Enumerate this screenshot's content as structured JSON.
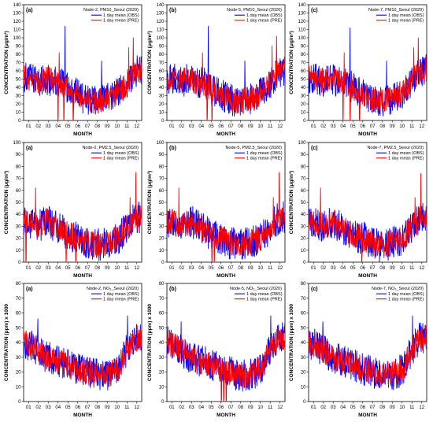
{
  "figure": {
    "obs_color": "#0000ff",
    "pre_color": "#ff0000",
    "xlabel": "MONTH",
    "months": [
      "01",
      "02",
      "03",
      "04",
      "05",
      "06",
      "07",
      "08",
      "09",
      "10",
      "11",
      "12"
    ]
  },
  "chart_data": [
    {
      "type": "line",
      "panel": "(a)",
      "title": "Node-2, PM10_Seoul (2020)",
      "ylabel": "CONCENTRATION (μg/m³)",
      "ylim": [
        0,
        140
      ],
      "ystep": 10,
      "xlabel": "MONTH",
      "legend": "top-right",
      "series": [
        {
          "name": "1 day mean (OBS)",
          "color": "#0000ff"
        },
        {
          "name": "1 day mean (PRE)",
          "color": "#ff0000"
        }
      ],
      "base": [
        52,
        50,
        48,
        50,
        46,
        44,
        36,
        30,
        26,
        22,
        25,
        28,
        34,
        44,
        58,
        62
      ],
      "obs_spikes": [
        [
          0.35,
          114
        ],
        [
          0.66,
          72
        ]
      ],
      "pre_spikes": [
        [
          0.3,
          82
        ],
        [
          0.93,
          100
        ],
        [
          0.89,
          88
        ]
      ],
      "pre_drops": [
        0.29,
        0.34,
        0.42
      ]
    },
    {
      "type": "line",
      "panel": "(b)",
      "title": "Node-5, PM10_Seoul (2020)",
      "ylabel": "CONCENTRATION (μg/m³)",
      "ylim": [
        0,
        140
      ],
      "ystep": 10,
      "xlabel": "MONTH",
      "legend": "top-right",
      "series": [
        {
          "name": "1 day mean (OBS)",
          "color": "#0000ff"
        },
        {
          "name": "1 day mean (PRE)",
          "color": "#ff0000"
        }
      ],
      "base": [
        52,
        50,
        48,
        50,
        46,
        44,
        36,
        30,
        26,
        22,
        25,
        28,
        34,
        44,
        58,
        62
      ],
      "obs_spikes": [
        [
          0.35,
          114
        ],
        [
          0.66,
          72
        ]
      ],
      "pre_spikes": [
        [
          0.3,
          82
        ],
        [
          0.93,
          102
        ],
        [
          0.89,
          90
        ]
      ],
      "pre_drops": [
        0.34,
        0.38
      ]
    },
    {
      "type": "line",
      "panel": "(c)",
      "title": "Node-7, PM10_Seoul (2020)",
      "ylabel": "CONCENTRATION (μg/m³)",
      "ylim": [
        0,
        140
      ],
      "ystep": 10,
      "xlabel": "MONTH",
      "legend": "top-right",
      "series": [
        {
          "name": "1 day mean (OBS)",
          "color": "#0000ff"
        },
        {
          "name": "1 day mean (PRE)",
          "color": "#ff0000"
        }
      ],
      "base": [
        52,
        50,
        48,
        50,
        46,
        44,
        36,
        30,
        26,
        22,
        25,
        28,
        34,
        44,
        58,
        62
      ],
      "obs_spikes": [
        [
          0.35,
          112
        ],
        [
          0.66,
          72
        ]
      ],
      "pre_spikes": [
        [
          0.3,
          82
        ],
        [
          0.93,
          100
        ],
        [
          0.89,
          88
        ]
      ],
      "pre_drops": [
        0.29,
        0.35,
        0.43
      ]
    },
    {
      "type": "line",
      "panel": "(a)",
      "title": "Node-2, PM2.5_Seoul (2020)",
      "ylabel": "CONCENTRATION (μg/m³)",
      "ylim": [
        0,
        100
      ],
      "ystep": 10,
      "xlabel": "MONTH",
      "legend": "top-right",
      "series": [
        {
          "name": "1 day mean (OBS)",
          "color": "#0000ff"
        },
        {
          "name": "1 day mean (PRE)",
          "color": "#ff0000"
        }
      ],
      "base": [
        34,
        32,
        30,
        34,
        30,
        26,
        22,
        20,
        16,
        14,
        15,
        17,
        20,
        28,
        36,
        38
      ],
      "obs_spikes": [],
      "pre_spikes": [
        [
          0.1,
          62
        ],
        [
          0.95,
          75
        ],
        [
          0.9,
          54
        ]
      ],
      "pre_drops": [
        0.02,
        0.36,
        0.44
      ]
    },
    {
      "type": "line",
      "panel": "(b)",
      "title": "Node-5, PM2.5_Seoul (2020)",
      "ylabel": "CONCENTRATION (μg/m³)",
      "ylim": [
        0,
        100
      ],
      "ystep": 10,
      "xlabel": "MONTH",
      "legend": "top-right",
      "series": [
        {
          "name": "1 day mean (OBS)",
          "color": "#0000ff"
        },
        {
          "name": "1 day mean (PRE)",
          "color": "#ff0000"
        }
      ],
      "base": [
        34,
        32,
        30,
        34,
        30,
        26,
        22,
        20,
        16,
        14,
        15,
        17,
        20,
        28,
        36,
        38
      ],
      "obs_spikes": [],
      "pre_spikes": [
        [
          0.1,
          62
        ],
        [
          0.95,
          75
        ],
        [
          0.9,
          54
        ]
      ],
      "pre_drops": [
        0.38,
        0.4
      ]
    },
    {
      "type": "line",
      "panel": "(c)",
      "title": "Node-7, PM2.5_Seoul (2020)",
      "ylabel": "CONCENTRATION (μg/m³)",
      "ylim": [
        0,
        100
      ],
      "ystep": 10,
      "xlabel": "MONTH",
      "legend": "top-right",
      "series": [
        {
          "name": "1 day mean (OBS)",
          "color": "#0000ff"
        },
        {
          "name": "1 day mean (PRE)",
          "color": "#ff0000"
        }
      ],
      "base": [
        34,
        32,
        30,
        34,
        30,
        26,
        22,
        20,
        16,
        14,
        15,
        17,
        20,
        28,
        36,
        38
      ],
      "obs_spikes": [],
      "pre_spikes": [
        [
          0.1,
          62
        ],
        [
          0.95,
          74
        ],
        [
          0.9,
          54
        ]
      ],
      "pre_drops": [
        0.45
      ]
    },
    {
      "type": "line",
      "panel": "(a)",
      "title": "Node-2, NO₂_Seoul (2020)",
      "ylabel": "CONCENTRATION (ppm) x 1000",
      "ylim": [
        0,
        80
      ],
      "ystep": 10,
      "xlabel": "MONTH",
      "legend": "top-right",
      "series": [
        {
          "name": "1 day mean (OBS)",
          "color": "#0000ff"
        },
        {
          "name": "1 day mean (PRE)",
          "color": "#ff0000"
        }
      ],
      "base": [
        40,
        38,
        34,
        30,
        28,
        26,
        24,
        22,
        20,
        18,
        18,
        19,
        22,
        34,
        42,
        44
      ],
      "obs_spikes": [
        [
          0.12,
          56
        ],
        [
          0.88,
          58
        ]
      ],
      "pre_spikes": [],
      "pre_drops": []
    },
    {
      "type": "line",
      "panel": "(b)",
      "title": "Node-5, NO₂_Seoul (2020)",
      "ylabel": "CONCENTRATION (ppm) x 1000",
      "ylim": [
        0,
        80
      ],
      "ystep": 10,
      "xlabel": "MONTH",
      "legend": "top-right",
      "series": [
        {
          "name": "1 day mean (OBS)",
          "color": "#0000ff"
        },
        {
          "name": "1 day mean (PRE)",
          "color": "#ff0000"
        }
      ],
      "base": [
        40,
        38,
        34,
        30,
        28,
        26,
        24,
        22,
        20,
        18,
        18,
        19,
        22,
        34,
        42,
        44
      ],
      "obs_spikes": [
        [
          0.12,
          54
        ],
        [
          0.88,
          58
        ]
      ],
      "pre_spikes": [],
      "pre_drops": [
        0.46,
        0.48,
        0.5
      ]
    },
    {
      "type": "line",
      "panel": "(c)",
      "title": "Node-7, NO₂_Seoul (2020)",
      "ylabel": "CONCENTRATION (ppm) x 1000",
      "ylim": [
        0,
        80
      ],
      "ystep": 10,
      "xlabel": "MONTH",
      "legend": "top-right",
      "series": [
        {
          "name": "1 day mean (OBS)",
          "color": "#0000ff"
        },
        {
          "name": "1 day mean (PRE)",
          "color": "#ff0000"
        }
      ],
      "base": [
        40,
        38,
        34,
        30,
        28,
        26,
        24,
        22,
        20,
        18,
        18,
        19,
        22,
        34,
        42,
        44
      ],
      "obs_spikes": [
        [
          0.12,
          54
        ],
        [
          0.88,
          58
        ]
      ],
      "pre_spikes": [],
      "pre_drops": []
    }
  ]
}
